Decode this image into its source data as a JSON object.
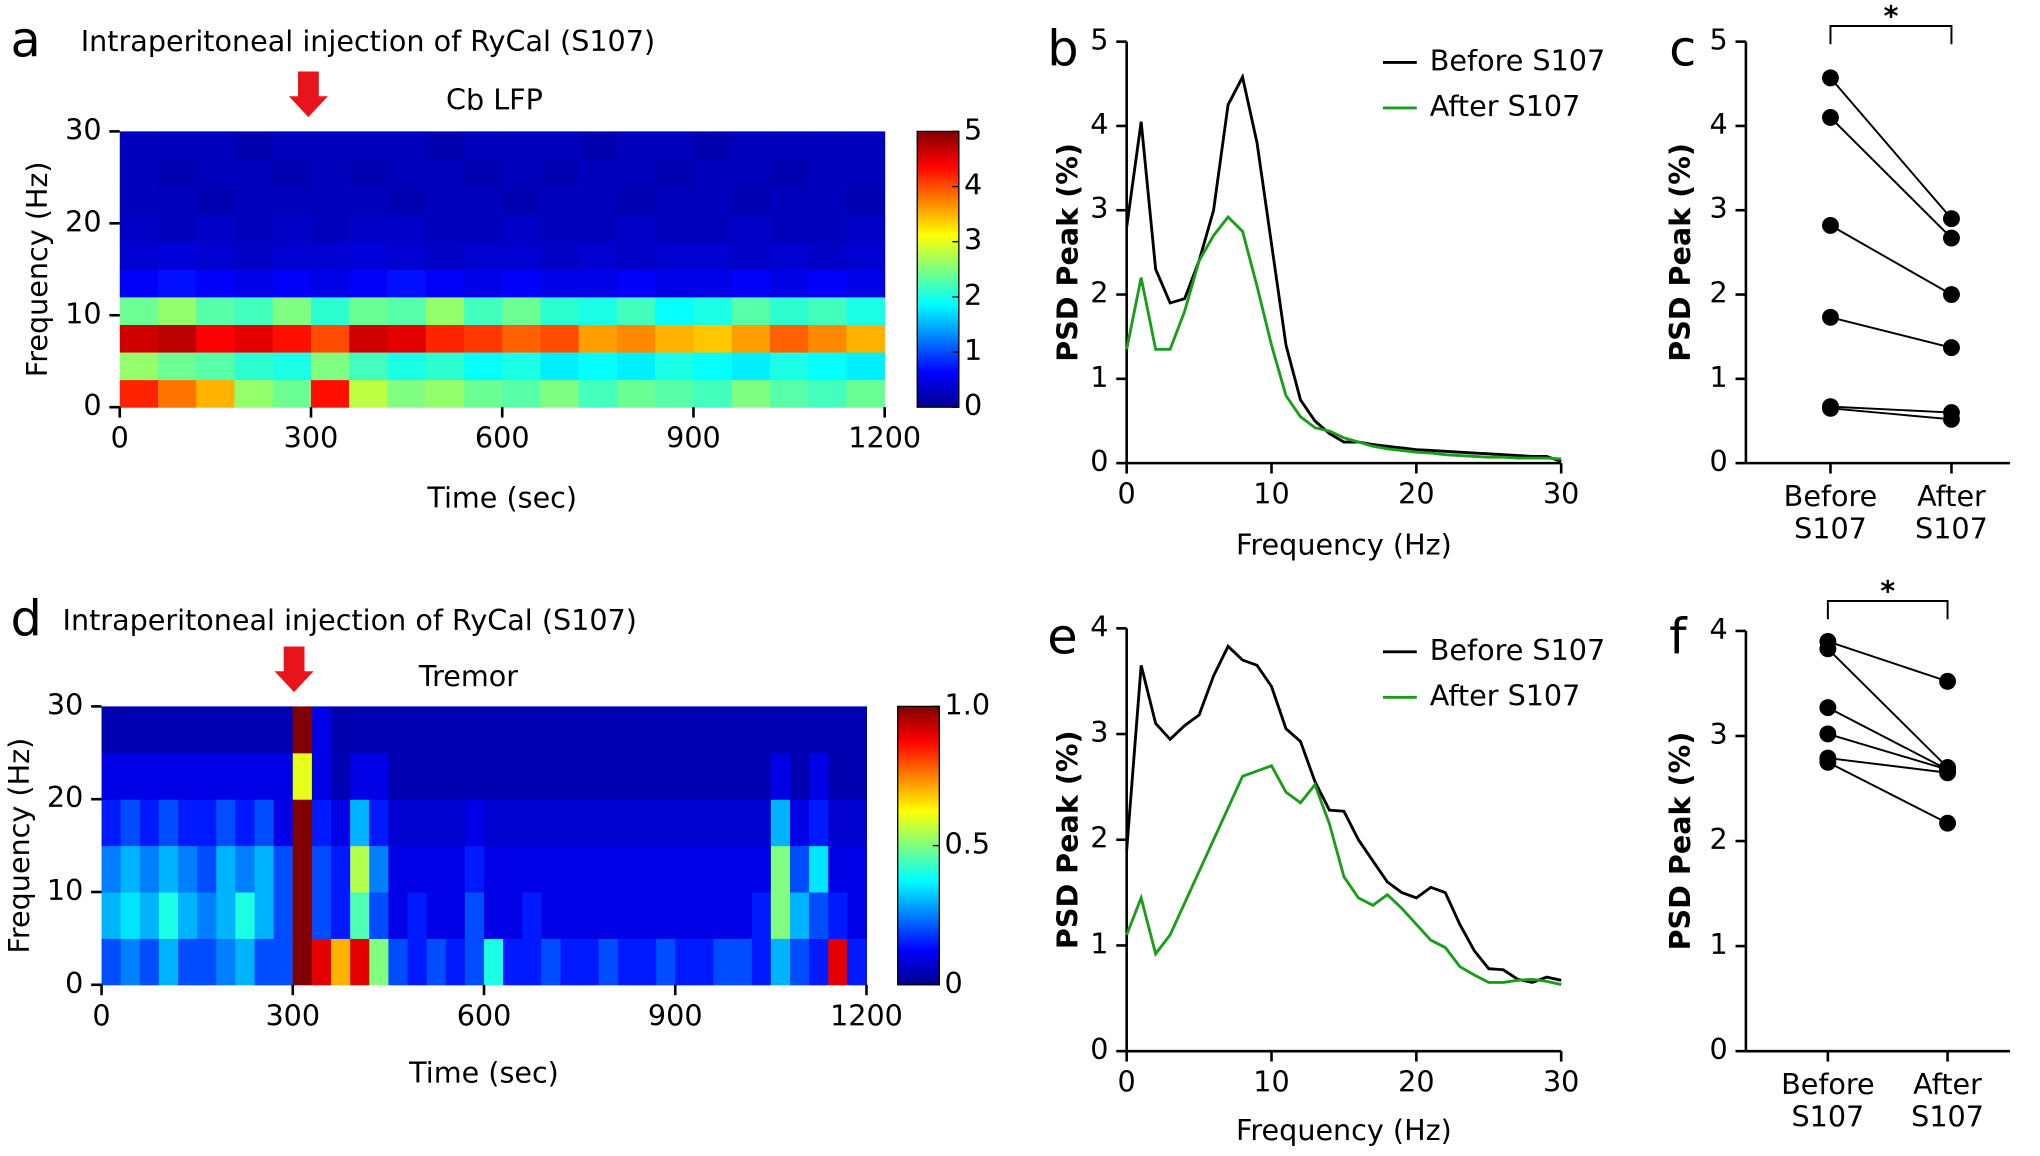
{
  "chart_data": [
    {
      "type": "heatmap",
      "panel_label": "a",
      "annotation": "Intraperitoneal injection of RyCal (S107)",
      "title": "Cb LFP",
      "x_label": "Time (sec)",
      "y_label": "Frequency (Hz)",
      "xlim": [
        0,
        1200
      ],
      "xticks": [
        0,
        300,
        600,
        900,
        1200
      ],
      "ylim": [
        0,
        30
      ],
      "yticks": [
        0,
        10,
        20,
        30
      ],
      "zlim": [
        0,
        5
      ],
      "cbar_ticks": [
        0,
        1,
        2,
        3,
        4,
        5
      ],
      "z": [
        [
          4.2,
          3.8,
          3.5,
          2.6,
          2.4,
          4.3,
          2.8,
          2.5,
          2.6,
          2.4,
          2.3,
          2.5,
          2.2,
          2.4,
          2.3,
          2.2,
          2.5,
          2.3,
          2.2,
          2.4
        ],
        [
          2.6,
          2.4,
          2.3,
          2.1,
          2.0,
          2.5,
          2.2,
          2.0,
          2.1,
          1.9,
          2.0,
          1.8,
          1.9,
          1.8,
          2.0,
          1.9,
          1.8,
          2.0,
          1.9,
          1.8
        ],
        [
          4.6,
          4.7,
          4.4,
          4.5,
          4.3,
          4.0,
          4.6,
          4.5,
          4.2,
          4.1,
          3.9,
          4.0,
          3.6,
          3.7,
          3.5,
          3.4,
          3.6,
          3.9,
          3.7,
          3.5
        ],
        [
          2.4,
          2.6,
          2.3,
          2.2,
          2.5,
          2.1,
          2.4,
          2.3,
          2.6,
          2.2,
          2.4,
          2.1,
          2.0,
          2.2,
          1.9,
          2.0,
          2.3,
          2.1,
          2.2,
          2.0
        ],
        [
          0.6,
          0.7,
          0.6,
          0.5,
          0.6,
          0.5,
          0.6,
          0.7,
          0.6,
          0.5,
          0.6,
          0.5,
          0.5,
          0.6,
          0.5,
          0.5,
          0.6,
          0.5,
          0.6,
          0.5
        ],
        [
          0.4,
          0.45,
          0.4,
          0.35,
          0.4,
          0.4,
          0.45,
          0.4,
          0.35,
          0.4,
          0.4,
          0.35,
          0.4,
          0.35,
          0.4,
          0.4,
          0.35,
          0.4,
          0.35,
          0.4
        ],
        [
          0.35,
          0.3,
          0.35,
          0.3,
          0.35,
          0.3,
          0.35,
          0.35,
          0.3,
          0.3,
          0.35,
          0.3,
          0.3,
          0.35,
          0.3,
          0.3,
          0.35,
          0.3,
          0.3,
          0.35
        ],
        [
          0.3,
          0.3,
          0.25,
          0.3,
          0.3,
          0.3,
          0.3,
          0.25,
          0.3,
          0.3,
          0.25,
          0.3,
          0.3,
          0.25,
          0.3,
          0.3,
          0.25,
          0.3,
          0.3,
          0.25
        ],
        [
          0.3,
          0.25,
          0.3,
          0.3,
          0.25,
          0.3,
          0.25,
          0.3,
          0.3,
          0.25,
          0.3,
          0.25,
          0.3,
          0.3,
          0.25,
          0.3,
          0.3,
          0.25,
          0.3,
          0.3
        ],
        [
          0.3,
          0.3,
          0.3,
          0.25,
          0.3,
          0.3,
          0.3,
          0.3,
          0.25,
          0.3,
          0.3,
          0.3,
          0.25,
          0.3,
          0.3,
          0.25,
          0.3,
          0.3,
          0.3,
          0.3
        ]
      ]
    },
    {
      "type": "line",
      "panel_label": "b",
      "x_label": "Frequency (Hz)",
      "y_label": "PSD Peak (%)",
      "xlim": [
        0,
        30
      ],
      "xticks": [
        0,
        10,
        20,
        30
      ],
      "ylim": [
        0,
        5
      ],
      "yticks": [
        0,
        1,
        2,
        3,
        4,
        5
      ],
      "x": [
        0,
        1,
        2,
        3,
        4,
        5,
        6,
        7,
        8,
        9,
        10,
        11,
        12,
        13,
        14,
        15,
        16,
        17,
        18,
        19,
        20,
        21,
        22,
        23,
        24,
        25,
        26,
        27,
        28,
        29,
        30
      ],
      "series": [
        {
          "name": "Before S107",
          "color": "#000000",
          "values": [
            2.8,
            4.05,
            2.3,
            1.9,
            1.95,
            2.4,
            3.0,
            4.25,
            4.58,
            3.8,
            2.6,
            1.4,
            0.75,
            0.5,
            0.35,
            0.25,
            0.25,
            0.22,
            0.2,
            0.18,
            0.16,
            0.15,
            0.14,
            0.13,
            0.12,
            0.11,
            0.1,
            0.09,
            0.08,
            0.08,
            0.02
          ]
        },
        {
          "name": "After S107",
          "color": "#1a9e1a",
          "values": [
            1.35,
            2.2,
            1.35,
            1.35,
            1.8,
            2.4,
            2.7,
            2.92,
            2.75,
            2.1,
            1.4,
            0.8,
            0.55,
            0.42,
            0.38,
            0.3,
            0.25,
            0.2,
            0.17,
            0.15,
            0.13,
            0.12,
            0.1,
            0.09,
            0.08,
            0.07,
            0.07,
            0.06,
            0.06,
            0.06,
            0.05
          ]
        }
      ]
    },
    {
      "type": "paired",
      "panel_label": "c",
      "y_label": "PSD Peak (%)",
      "annotation": "*",
      "categories": [
        "Before S107",
        "After S107"
      ],
      "ylim": [
        0,
        5
      ],
      "yticks": [
        0,
        1,
        2,
        3,
        4,
        5
      ],
      "color": "#000000",
      "series": [
        {
          "values": [
            4.57,
            2.9
          ]
        },
        {
          "values": [
            4.1,
            2.67
          ]
        },
        {
          "values": [
            2.82,
            2.0
          ]
        },
        {
          "values": [
            1.73,
            1.37
          ]
        },
        {
          "values": [
            0.67,
            0.6
          ]
        },
        {
          "values": [
            0.65,
            0.52
          ]
        }
      ]
    },
    {
      "type": "heatmap",
      "panel_label": "d",
      "annotation": "Intraperitoneal injection of RyCal (S107)",
      "title": "Tremor",
      "x_label": "Time (sec)",
      "y_label": "Frequency (Hz)",
      "xlim": [
        0,
        1200
      ],
      "xticks": [
        0,
        300,
        600,
        900,
        1200
      ],
      "ylim": [
        0,
        30
      ],
      "yticks": [
        0,
        10,
        20,
        30
      ],
      "zlim": [
        0,
        1
      ],
      "cbar_ticks": [
        0,
        0.5,
        {
          "value": 1,
          "label": "1.0"
        }
      ],
      "z": [
        [
          0.2,
          0.25,
          0.2,
          0.3,
          0.2,
          0.2,
          0.25,
          0.3,
          0.2,
          0.2,
          1.0,
          0.9,
          0.7,
          0.9,
          0.5,
          0.2,
          0.15,
          0.2,
          0.15,
          0.2,
          0.4,
          0.15,
          0.15,
          0.2,
          0.15,
          0.15,
          0.2,
          0.15,
          0.15,
          0.2,
          0.15,
          0.15,
          0.2,
          0.2,
          0.15,
          0.3,
          0.2,
          0.15,
          0.9,
          0.15
        ],
        [
          0.3,
          0.35,
          0.3,
          0.4,
          0.3,
          0.25,
          0.3,
          0.4,
          0.3,
          0.2,
          1.0,
          0.2,
          0.15,
          0.45,
          0.2,
          0.1,
          0.15,
          0.1,
          0.1,
          0.2,
          0.1,
          0.1,
          0.15,
          0.1,
          0.1,
          0.1,
          0.1,
          0.1,
          0.1,
          0.1,
          0.1,
          0.1,
          0.1,
          0.1,
          0.15,
          0.5,
          0.3,
          0.2,
          0.15,
          0.1
        ],
        [
          0.25,
          0.3,
          0.25,
          0.3,
          0.25,
          0.2,
          0.3,
          0.25,
          0.3,
          0.2,
          1.0,
          0.2,
          0.15,
          0.55,
          0.25,
          0.1,
          0.1,
          0.1,
          0.1,
          0.15,
          0.1,
          0.1,
          0.1,
          0.1,
          0.1,
          0.1,
          0.1,
          0.1,
          0.1,
          0.1,
          0.1,
          0.1,
          0.1,
          0.1,
          0.1,
          0.5,
          0.2,
          0.35,
          0.1,
          0.1
        ],
        [
          0.15,
          0.2,
          0.15,
          0.2,
          0.15,
          0.15,
          0.2,
          0.15,
          0.2,
          0.1,
          1.0,
          0.15,
          0.1,
          0.3,
          0.15,
          0.08,
          0.08,
          0.08,
          0.08,
          0.1,
          0.08,
          0.08,
          0.08,
          0.08,
          0.08,
          0.08,
          0.08,
          0.08,
          0.08,
          0.08,
          0.08,
          0.08,
          0.08,
          0.08,
          0.08,
          0.3,
          0.1,
          0.15,
          0.08,
          0.08
        ],
        [
          0.1,
          0.1,
          0.1,
          0.1,
          0.1,
          0.1,
          0.1,
          0.1,
          0.1,
          0.1,
          0.6,
          0.1,
          0.05,
          0.1,
          0.1,
          0.05,
          0.05,
          0.05,
          0.05,
          0.05,
          0.05,
          0.05,
          0.05,
          0.05,
          0.05,
          0.05,
          0.05,
          0.05,
          0.05,
          0.05,
          0.05,
          0.05,
          0.05,
          0.05,
          0.05,
          0.1,
          0.05,
          0.1,
          0.05,
          0.05
        ],
        [
          0.05,
          0.05,
          0.05,
          0.05,
          0.05,
          0.05,
          0.05,
          0.05,
          0.05,
          0.05,
          1.0,
          0.1,
          0.05,
          0.05,
          0.05,
          0.05,
          0.05,
          0.05,
          0.05,
          0.05,
          0.05,
          0.05,
          0.05,
          0.05,
          0.05,
          0.05,
          0.05,
          0.05,
          0.05,
          0.05,
          0.05,
          0.05,
          0.05,
          0.05,
          0.05,
          0.05,
          0.05,
          0.05,
          0.05,
          0.05
        ]
      ]
    },
    {
      "type": "line",
      "panel_label": "e",
      "x_label": "Frequency (Hz)",
      "y_label": "PSD Peak (%)",
      "xlim": [
        0,
        30
      ],
      "xticks": [
        0,
        10,
        20,
        30
      ],
      "ylim": [
        0,
        4
      ],
      "yticks": [
        0,
        1,
        2,
        3,
        4
      ],
      "x": [
        0,
        1,
        2,
        3,
        4,
        5,
        6,
        7,
        8,
        9,
        10,
        11,
        12,
        13,
        14,
        15,
        16,
        17,
        18,
        19,
        20,
        21,
        22,
        23,
        24,
        25,
        26,
        27,
        28,
        29,
        30
      ],
      "series": [
        {
          "name": "Before S107",
          "color": "#000000",
          "values": [
            1.9,
            3.65,
            3.1,
            2.95,
            3.08,
            3.18,
            3.55,
            3.83,
            3.7,
            3.65,
            3.45,
            3.05,
            2.93,
            2.55,
            2.28,
            2.27,
            2.0,
            1.8,
            1.6,
            1.5,
            1.45,
            1.55,
            1.5,
            1.2,
            0.95,
            0.78,
            0.77,
            0.68,
            0.65,
            0.7,
            0.67
          ]
        },
        {
          "name": "After S107",
          "color": "#1a9e1a",
          "values": [
            1.1,
            1.45,
            0.92,
            1.1,
            1.4,
            1.7,
            2.0,
            2.3,
            2.6,
            2.65,
            2.7,
            2.45,
            2.35,
            2.52,
            2.15,
            1.65,
            1.45,
            1.38,
            1.48,
            1.35,
            1.2,
            1.05,
            0.98,
            0.8,
            0.72,
            0.65,
            0.65,
            0.67,
            0.68,
            0.66,
            0.63
          ]
        }
      ]
    },
    {
      "type": "paired",
      "panel_label": "f",
      "y_label": "PSD Peak (%)",
      "annotation": "*",
      "categories": [
        "Before S107",
        "After S107"
      ],
      "ylim": [
        0,
        4
      ],
      "yticks": [
        0,
        1,
        2,
        3,
        4
      ],
      "color": "#000000",
      "series": [
        {
          "values": [
            3.9,
            3.52
          ]
        },
        {
          "values": [
            3.83,
            2.7
          ]
        },
        {
          "values": [
            3.27,
            2.68
          ]
        },
        {
          "values": [
            3.02,
            2.68
          ]
        },
        {
          "values": [
            2.79,
            2.65
          ]
        },
        {
          "values": [
            2.75,
            2.17
          ]
        }
      ]
    }
  ]
}
